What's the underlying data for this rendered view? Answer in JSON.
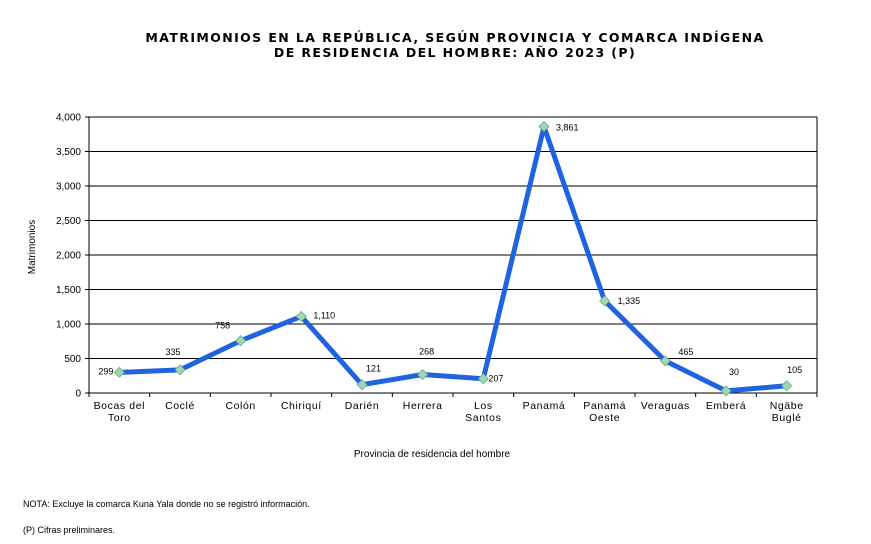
{
  "chart_data": {
    "type": "line",
    "title_lines": [
      "MATRIMONIOS  EN LA REPÚBLICA,  SEGÚN PROVINCIA  Y COMARCA  INDÍGENA",
      "DE RESIDENCIA  DEL HOMBRE: AÑO 2023 (P)"
    ],
    "xlabel": "Provincia de residencia del hombre",
    "ylabel": "Matrimonios",
    "categories": [
      [
        "Bocas del",
        "Toro"
      ],
      [
        "Coclé"
      ],
      [
        "Colón"
      ],
      [
        "Chiriquí"
      ],
      [
        "Darién"
      ],
      [
        "Herrera"
      ],
      [
        "Los",
        "Santos"
      ],
      [
        "Panamá"
      ],
      [
        "Panamá",
        "Oeste"
      ],
      [
        "Veraguas"
      ],
      [
        "Emberá"
      ],
      [
        "Ngäbe",
        "Buglé"
      ]
    ],
    "values": [
      299,
      335,
      758,
      1110,
      121,
      268,
      207,
      3861,
      1335,
      465,
      30,
      105
    ],
    "value_labels": [
      "299",
      "335",
      "758",
      "1,110",
      "121",
      "268",
      "207",
      "3,861",
      "1,335",
      "465",
      "30",
      "105"
    ],
    "ylim": [
      0,
      4000
    ],
    "yticks": [
      0,
      500,
      1000,
      1500,
      2000,
      2500,
      3000,
      3500,
      4000
    ],
    "ytick_labels": [
      "0",
      "500",
      "1,000",
      "1,500",
      "2,000",
      "2,500",
      "3,000",
      "3,500",
      "4,000"
    ],
    "grid": "horizontal",
    "line_color": "#1f63e0",
    "marker_color": "#9fd6b4"
  },
  "notes": [
    "NOTA: Excluye la comarca Kuna Yala donde  no se registró información.",
    "(P) Cifras preliminares."
  ]
}
